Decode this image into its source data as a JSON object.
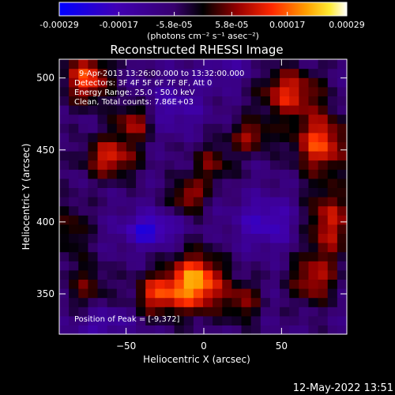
{
  "chart_data": {
    "type": "heatmap",
    "title": "Reconstructed RHESSI Image",
    "xlabel": "Heliocentric X (arcsec)",
    "ylabel": "Heliocentric Y (arcsec)",
    "xlim": [
      -93,
      92
    ],
    "ylim": [
      322,
      513
    ],
    "x_ticks": [
      -50,
      0,
      50
    ],
    "y_ticks": [
      350,
      400,
      450,
      500
    ],
    "colorbar": {
      "ticks": [
        "-0.00029",
        "-0.00017",
        "-5.8e-05",
        "5.8e-05",
        "0.00017",
        "0.00029"
      ],
      "tick_values": [
        -0.00029,
        -0.00017,
        -5.8e-05,
        5.8e-05,
        0.00017,
        0.00029
      ],
      "range": [
        -0.00029,
        0.00029
      ],
      "unit_label": "(photons cm⁻² s⁻¹ asec⁻²)"
    },
    "annotations": [
      "9-Apr-2013 13:26:00.000 to 13:32:00.000",
      "Detectors: 3F 4F 5F 6F 7F 8F, Att 0",
      "Energy Range: 25.0 - 50.0 keV",
      "Clean,  Total counts: 7.86E+03"
    ],
    "peak_label": "Position of Peak = [-9,372]",
    "peak": [
      -9,
      372
    ],
    "field_resolution": [
      30,
      30
    ],
    "blobs": [
      {
        "x": -5,
        "y": 358,
        "sx": 12,
        "sy": 14,
        "v": 1.0
      },
      {
        "x": -30,
        "y": 350,
        "sx": 10,
        "sy": 10,
        "v": 0.65
      },
      {
        "x": 25,
        "y": 345,
        "sx": 8,
        "sy": 10,
        "v": 0.45
      },
      {
        "x": -60,
        "y": 445,
        "sx": 12,
        "sy": 10,
        "v": 0.65
      },
      {
        "x": -75,
        "y": 500,
        "sx": 10,
        "sy": 12,
        "v": 0.75
      },
      {
        "x": -45,
        "y": 470,
        "sx": 9,
        "sy": 9,
        "v": 0.55
      },
      {
        "x": 55,
        "y": 490,
        "sx": 14,
        "sy": 12,
        "v": 0.65
      },
      {
        "x": 75,
        "y": 455,
        "sx": 12,
        "sy": 14,
        "v": 0.75
      },
      {
        "x": 30,
        "y": 460,
        "sx": 10,
        "sy": 8,
        "v": 0.5
      },
      {
        "x": 80,
        "y": 400,
        "sx": 10,
        "sy": 18,
        "v": 0.6
      },
      {
        "x": 70,
        "y": 360,
        "sx": 10,
        "sy": 12,
        "v": 0.55
      },
      {
        "x": -10,
        "y": 418,
        "sx": 8,
        "sy": 8,
        "v": 0.55
      },
      {
        "x": 5,
        "y": 440,
        "sx": 10,
        "sy": 10,
        "v": 0.4
      },
      {
        "x": -75,
        "y": 355,
        "sx": 10,
        "sy": 12,
        "v": 0.35
      },
      {
        "x": -85,
        "y": 395,
        "sx": 8,
        "sy": 14,
        "v": 0.35
      },
      {
        "x": -35,
        "y": 395,
        "sx": 12,
        "sy": 8,
        "v": -0.55
      },
      {
        "x": 40,
        "y": 400,
        "sx": 14,
        "sy": 12,
        "v": -0.4
      },
      {
        "x": -20,
        "y": 480,
        "sx": 14,
        "sy": 12,
        "v": -0.3
      },
      {
        "x": 15,
        "y": 505,
        "sx": 14,
        "sy": 8,
        "v": -0.2
      },
      {
        "x": -65,
        "y": 330,
        "sx": 12,
        "sy": 8,
        "v": -0.3
      }
    ]
  },
  "footer": {
    "timestamp": "12-May-2022 13:51"
  }
}
